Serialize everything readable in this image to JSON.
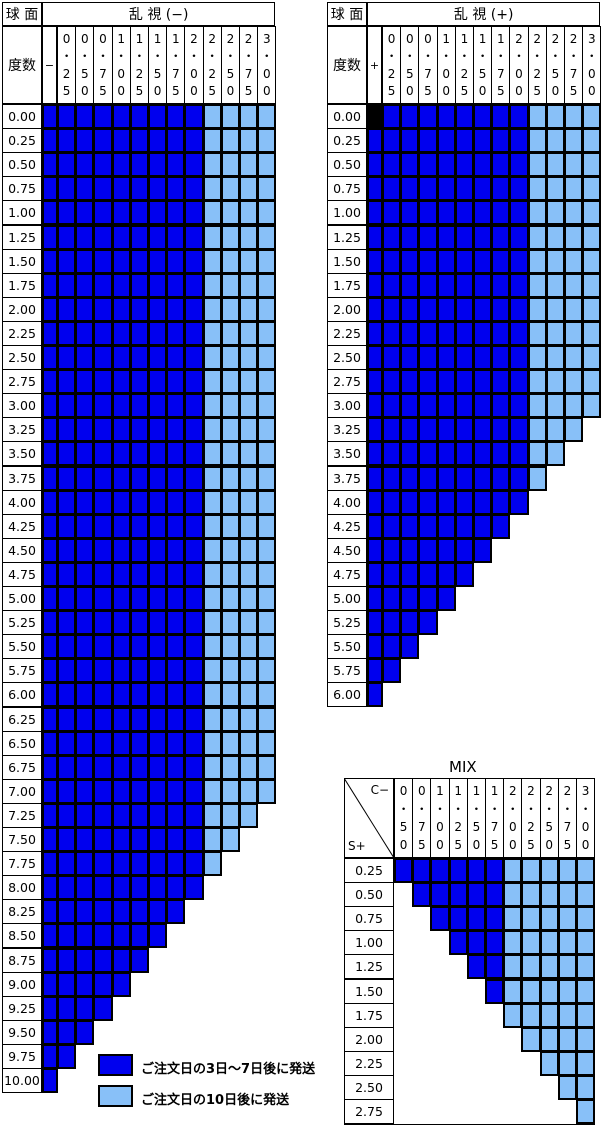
{
  "colors": {
    "dark": "#0000ee",
    "light": "#88c0f8",
    "black": "#000000"
  },
  "left_table": {
    "header_sph": "球 面",
    "header_cyl": "乱 視 (−)",
    "header_deg": "度数",
    "sign": "−",
    "cols": [
      "0.25",
      "0.50",
      "0.75",
      "1.00",
      "1.25",
      "1.50",
      "1.75",
      "2.00",
      "2.25",
      "2.50",
      "2.75",
      "3.00"
    ],
    "rows": [
      "0.00",
      "0.25",
      "0.50",
      "0.75",
      "1.00",
      "1.25",
      "1.50",
      "1.75",
      "2.00",
      "2.25",
      "2.50",
      "2.75",
      "3.00",
      "3.25",
      "3.50",
      "3.75",
      "4.00",
      "4.25",
      "4.50",
      "4.75",
      "5.00",
      "5.25",
      "5.50",
      "5.75",
      "6.00",
      "6.25",
      "6.50",
      "6.75",
      "7.00",
      "7.25",
      "7.50",
      "7.75",
      "8.00",
      "8.25",
      "8.50",
      "8.75",
      "9.00",
      "9.25",
      "9.50",
      "9.75",
      "10.00"
    ]
  },
  "right_table": {
    "header_sph": "球 面",
    "header_cyl": "乱 視 (+)",
    "header_deg": "度数",
    "sign": "+",
    "cols": [
      "0.25",
      "0.50",
      "0.75",
      "1.00",
      "1.25",
      "1.50",
      "1.75",
      "2.00",
      "2.25",
      "2.50",
      "2.75",
      "3.00"
    ],
    "rows": [
      "0.00",
      "0.25",
      "0.50",
      "0.75",
      "1.00",
      "1.25",
      "1.50",
      "1.75",
      "2.00",
      "2.25",
      "2.50",
      "2.75",
      "3.00",
      "3.25",
      "3.50",
      "3.75",
      "4.00",
      "4.25",
      "4.50",
      "4.75",
      "5.00",
      "5.25",
      "5.50",
      "5.75",
      "6.00"
    ]
  },
  "mix_table": {
    "title": "MIX",
    "corner_top": "C−",
    "corner_bottom": "S+",
    "cols": [
      "0.50",
      "0.75",
      "1.00",
      "1.25",
      "1.50",
      "1.75",
      "2.00",
      "2.25",
      "2.50",
      "2.75",
      "3.00"
    ],
    "rows": [
      "0.25",
      "0.50",
      "0.75",
      "1.00",
      "1.25",
      "1.50",
      "1.75",
      "2.00",
      "2.25",
      "2.50",
      "2.75"
    ]
  },
  "legend": {
    "dark_label": "ご注文日の3日～7日後に発送",
    "light_label": "ご注文日の10日後に発送"
  }
}
